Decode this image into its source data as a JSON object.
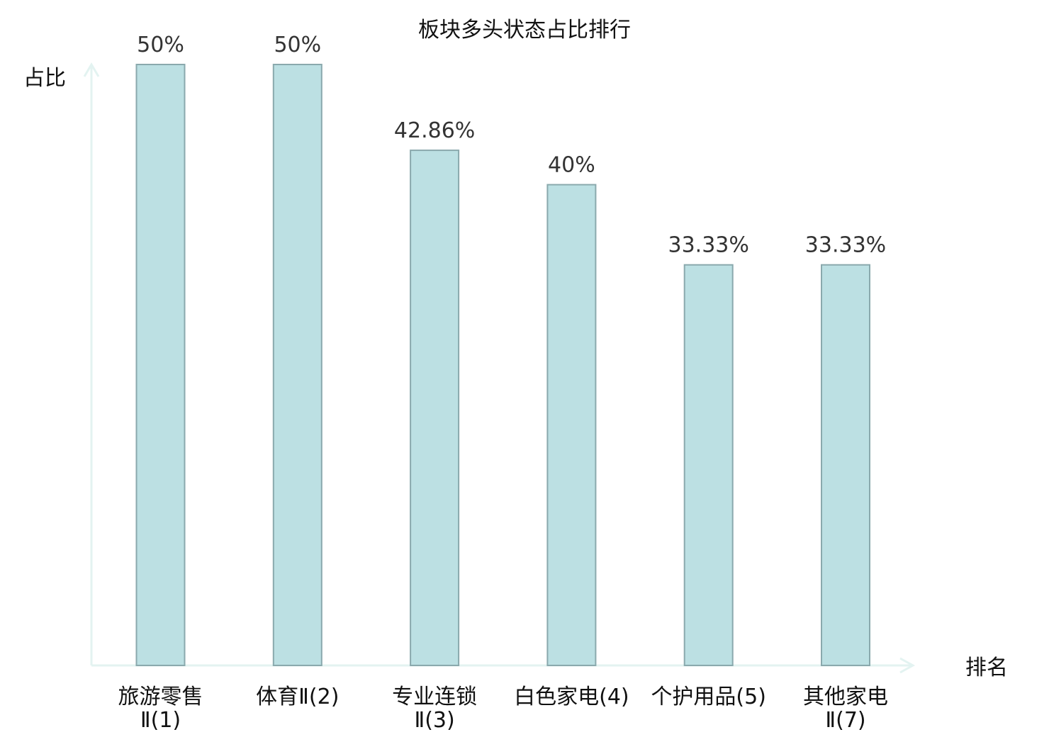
{
  "chart_data": {
    "type": "bar",
    "title": "板块多头状态占比排行",
    "ylabel": "占比",
    "xlabel": "排名",
    "categories": [
      [
        "旅游零售",
        "Ⅱ(1)"
      ],
      [
        "体育Ⅱ(2)"
      ],
      [
        "专业连锁",
        "Ⅱ(3)"
      ],
      [
        "白色家电(4)"
      ],
      [
        "个护用品(5)"
      ],
      [
        "其他家电",
        "Ⅱ(7)"
      ]
    ],
    "values": [
      50,
      50,
      42.86,
      40,
      33.33,
      33.33
    ],
    "value_labels": [
      "50%",
      "50%",
      "42.86%",
      "40%",
      "33.33%",
      "33.33%"
    ],
    "highlight_index": 5,
    "ylim": [
      0,
      50
    ],
    "grid": false
  },
  "colors": {
    "bar_fill": "#bce0e3",
    "bar_stroke": "#8aa9ad",
    "axis": "#e3f3f1",
    "highlight_text": "#e8141c",
    "text": "#111111"
  }
}
